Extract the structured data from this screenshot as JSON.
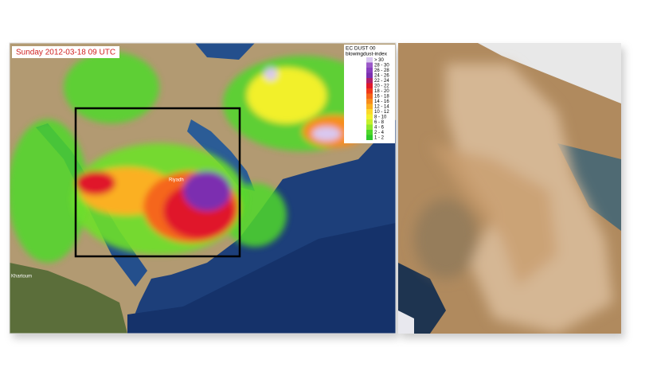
{
  "timestamp": "Sunday 2012-03-18 09 UTC",
  "legend": {
    "title": "EC DUST 00",
    "subtitle": "blowingdust-index",
    "items": [
      {
        "label": "> 30",
        "color": "#d9c8f0"
      },
      {
        "label": "28 - 30",
        "color": "#9b59c9"
      },
      {
        "label": "26 - 28",
        "color": "#8a3fbf"
      },
      {
        "label": "24 - 26",
        "color": "#7b2fb0"
      },
      {
        "label": "22 - 24",
        "color": "#b0206a"
      },
      {
        "label": "20 - 22",
        "color": "#e0182a"
      },
      {
        "label": "18 - 20",
        "color": "#f03a1a"
      },
      {
        "label": "16 - 18",
        "color": "#f5661a"
      },
      {
        "label": "14 - 16",
        "color": "#f88c1c"
      },
      {
        "label": "12 - 14",
        "color": "#fbb020"
      },
      {
        "label": "10 - 12",
        "color": "#fcd82a"
      },
      {
        "label": "8 - 10",
        "color": "#f2f02c"
      },
      {
        "label": "6 - 8",
        "color": "#c6f02c"
      },
      {
        "label": "4 - 6",
        "color": "#8fe82c"
      },
      {
        "label": "2 - 4",
        "color": "#4fd82a"
      },
      {
        "label": "1 - 2",
        "color": "#2ec82a"
      }
    ]
  },
  "places": [
    {
      "label": "Riyadh"
    },
    {
      "label": "Khartoum"
    }
  ]
}
